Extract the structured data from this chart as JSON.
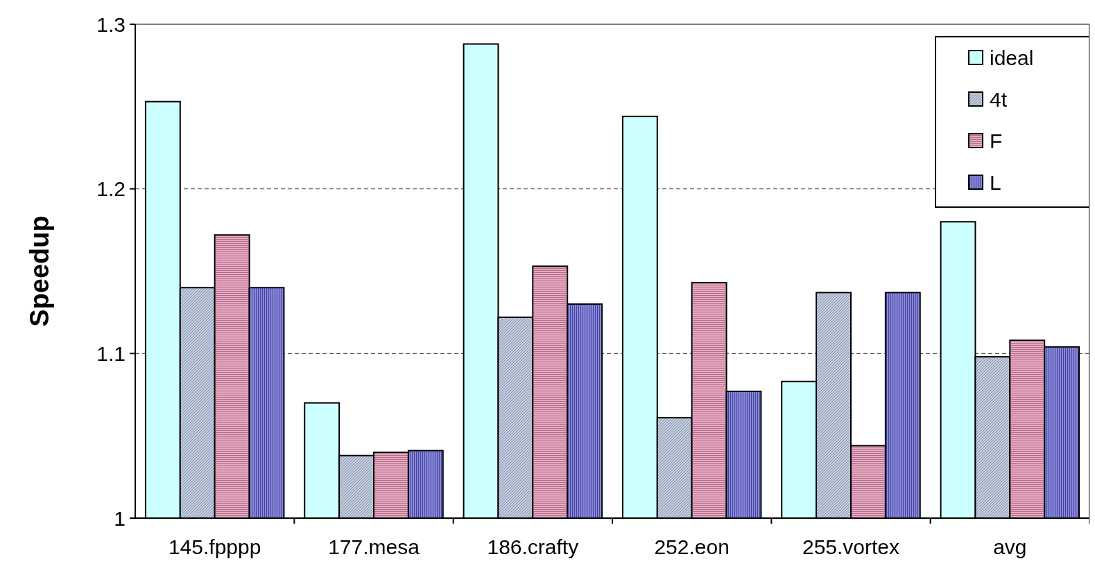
{
  "chart_data": {
    "type": "bar",
    "ylabel": "Speedup",
    "categories": [
      "145.fpppp",
      "177.mesa",
      "186.crafty",
      "252.eon",
      "255.vortex",
      "avg"
    ],
    "series": [
      {
        "name": "ideal",
        "color": "#ccffff",
        "values": [
          1.253,
          1.07,
          1.288,
          1.244,
          1.083,
          1.18
        ]
      },
      {
        "name": "4t",
        "color": "#c4ccdc",
        "values": [
          1.14,
          1.038,
          1.122,
          1.061,
          1.137,
          1.098
        ]
      },
      {
        "name": "F",
        "color": "#e8a8c0",
        "values": [
          1.172,
          1.04,
          1.153,
          1.143,
          1.044,
          1.108
        ]
      },
      {
        "name": "L",
        "color": "#8888d8",
        "values": [
          1.14,
          1.041,
          1.13,
          1.077,
          1.137,
          1.104
        ]
      }
    ],
    "ylim": [
      1,
      1.3
    ],
    "yticks": [
      1,
      1.1,
      1.2,
      1.3
    ],
    "grid": "y",
    "legend": "top right"
  }
}
